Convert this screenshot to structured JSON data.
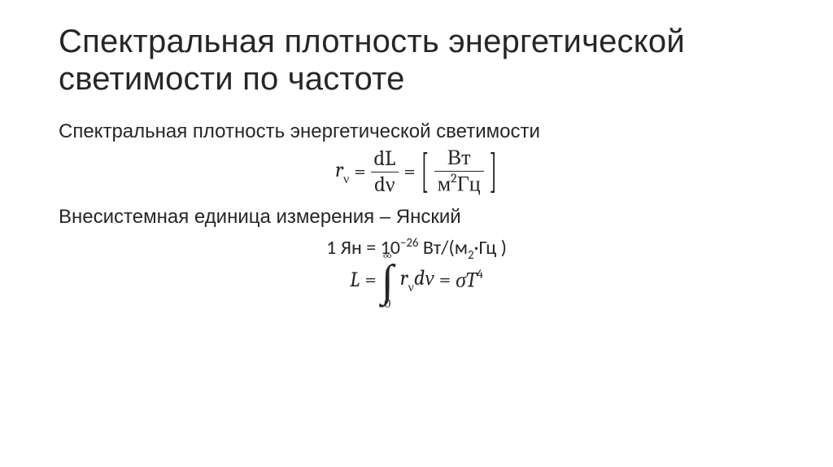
{
  "colors": {
    "text": "#262626",
    "bg": "#ffffff"
  },
  "fonts": {
    "title_pt": 40,
    "body_pt": 24,
    "math_pt": 26
  },
  "title": "Спектральная плотность энергетической светимости по частоте",
  "line1": "Спектральная плотность энергетической светимости",
  "eq1": {
    "lhs_var": "r",
    "lhs_sub": "ν",
    "eq": "=",
    "frac1_num": "dL",
    "frac1_den": "dν",
    "eq2": "=",
    "unit_num": "Вт",
    "unit_den_pre": "м",
    "unit_den_exp": "2",
    "unit_den_post": "Гц"
  },
  "line2": "Внесистемная единица измерения – Янский",
  "unitline": {
    "prefix": "1 Ян = 10",
    "exp": "−26",
    "tail": " Вт/(м",
    "m_exp": "2",
    "tail2": "·Гц )"
  },
  "eq2": {
    "L": "L",
    "eq": "=",
    "int_upper": "∞",
    "int_lower": "0",
    "integrand_r": "r",
    "integrand_sub": "ν",
    "integrand_d": "dν",
    "eq2": "=",
    "sigma": "σT",
    "exp": "4"
  }
}
